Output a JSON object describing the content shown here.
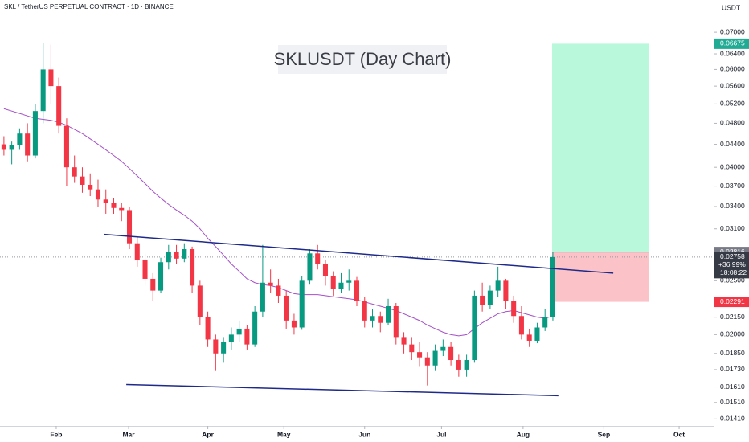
{
  "chart_data": {
    "type": "candlestick",
    "header": "SKL / TetherUS PERPETUAL CONTRACT · 1D · BINANCE",
    "title": "SKLUSDT (Day Chart)",
    "currency": "USDT",
    "log_scale": true,
    "up_color": "#089981",
    "down_color": "#f23645",
    "ylim": [
      0.0137,
      0.08
    ],
    "yticks": [
      {
        "value": 0.07,
        "label": "0.07000"
      },
      {
        "value": 0.064,
        "label": "0.06400"
      },
      {
        "value": 0.06,
        "label": "0.06000"
      },
      {
        "value": 0.056,
        "label": "0.05600"
      },
      {
        "value": 0.052,
        "label": "0.05200"
      },
      {
        "value": 0.048,
        "label": "0.04800"
      },
      {
        "value": 0.044,
        "label": "0.04400"
      },
      {
        "value": 0.04,
        "label": "0.04000"
      },
      {
        "value": 0.037,
        "label": "0.03700"
      },
      {
        "value": 0.034,
        "label": "0.03400"
      },
      {
        "value": 0.031,
        "label": "0.03100"
      },
      {
        "value": 0.025,
        "label": "0.02500"
      },
      {
        "value": 0.0215,
        "label": "0.02150"
      },
      {
        "value": 0.02,
        "label": "0.02000"
      },
      {
        "value": 0.0185,
        "label": "0.01850"
      },
      {
        "value": 0.0173,
        "label": "0.01730"
      },
      {
        "value": 0.0161,
        "label": "0.01610"
      },
      {
        "value": 0.0151,
        "label": "0.01510"
      },
      {
        "value": 0.0141,
        "label": "0.01410"
      }
    ],
    "xlim": [
      -0.5,
      90.5
    ],
    "xticks": [
      {
        "value": 6.67,
        "label": "Feb"
      },
      {
        "value": 15.9,
        "label": "Mar"
      },
      {
        "value": 26.0,
        "label": "Apr"
      },
      {
        "value": 35.7,
        "label": "May"
      },
      {
        "value": 46.0,
        "label": "Jun"
      },
      {
        "value": 55.8,
        "label": "Jul"
      },
      {
        "value": 66.2,
        "label": "Aug"
      },
      {
        "value": 76.5,
        "label": "Sep"
      },
      {
        "value": 86.1,
        "label": "Oct"
      }
    ],
    "open": [
      0.044,
      0.043,
      0.0438,
      0.046,
      0.042,
      0.0505,
      0.06,
      0.056,
      0.0475,
      0.04,
      0.0385,
      0.0372,
      0.0365,
      0.035,
      0.0345,
      0.0338,
      0.0335,
      0.0292,
      0.0272,
      0.0252,
      0.024,
      0.027,
      0.0282,
      0.0274,
      0.0285,
      0.0245,
      0.0215,
      0.0196,
      0.0185,
      0.0194,
      0.02,
      0.0205,
      0.0192,
      0.022,
      0.0248,
      0.0245,
      0.0235,
      0.0212,
      0.0206,
      0.025,
      0.028,
      0.0268,
      0.0255,
      0.0242,
      0.0248,
      0.025,
      0.023,
      0.0212,
      0.0216,
      0.021,
      0.0225,
      0.0198,
      0.0192,
      0.0186,
      0.0182,
      0.0176,
      0.0187,
      0.019,
      0.018,
      0.0173,
      0.018,
      0.0235,
      0.0226,
      0.024,
      0.025,
      0.023,
      0.0216,
      0.02,
      0.0195,
      0.0206,
      0.0215
    ],
    "high": [
      0.0455,
      0.0445,
      0.047,
      0.048,
      0.052,
      0.067,
      0.0665,
      0.058,
      0.049,
      0.042,
      0.04,
      0.039,
      0.038,
      0.0365,
      0.0352,
      0.0345,
      0.034,
      0.03,
      0.028,
      0.0258,
      0.0275,
      0.029,
      0.029,
      0.0292,
      0.0288,
      0.025,
      0.022,
      0.02,
      0.0198,
      0.0206,
      0.0212,
      0.0208,
      0.0225,
      0.029,
      0.0262,
      0.0252,
      0.024,
      0.0218,
      0.0255,
      0.0285,
      0.029,
      0.0272,
      0.026,
      0.0258,
      0.0262,
      0.0254,
      0.0234,
      0.0222,
      0.022,
      0.0232,
      0.0228,
      0.0202,
      0.0198,
      0.0194,
      0.0186,
      0.0192,
      0.0196,
      0.0194,
      0.0184,
      0.0184,
      0.024,
      0.0248,
      0.0245,
      0.0265,
      0.0252,
      0.0235,
      0.0225,
      0.0205,
      0.021,
      0.0222,
      0.02816
    ],
    "low": [
      0.042,
      0.0405,
      0.043,
      0.041,
      0.0415,
      0.048,
      0.052,
      0.046,
      0.037,
      0.0375,
      0.036,
      0.0355,
      0.034,
      0.033,
      0.033,
      0.032,
      0.0285,
      0.0265,
      0.0245,
      0.023,
      0.0238,
      0.0262,
      0.0268,
      0.027,
      0.0238,
      0.0208,
      0.019,
      0.0172,
      0.0178,
      0.0188,
      0.0194,
      0.0188,
      0.019,
      0.0215,
      0.0238,
      0.0228,
      0.0205,
      0.02,
      0.0204,
      0.0246,
      0.0262,
      0.0245,
      0.0235,
      0.0238,
      0.024,
      0.0225,
      0.0206,
      0.0206,
      0.0202,
      0.0208,
      0.0192,
      0.0185,
      0.018,
      0.0175,
      0.0162,
      0.0172,
      0.0183,
      0.0176,
      0.0168,
      0.0168,
      0.0178,
      0.022,
      0.0222,
      0.0234,
      0.0222,
      0.021,
      0.0196,
      0.019,
      0.0193,
      0.0203,
      0.0212
    ],
    "close": [
      0.043,
      0.0438,
      0.046,
      0.042,
      0.0505,
      0.06,
      0.056,
      0.0475,
      0.04,
      0.0385,
      0.0372,
      0.0365,
      0.035,
      0.0345,
      0.0338,
      0.0335,
      0.0292,
      0.0272,
      0.0252,
      0.024,
      0.027,
      0.0282,
      0.0274,
      0.0285,
      0.0245,
      0.0215,
      0.0196,
      0.0185,
      0.0194,
      0.02,
      0.0205,
      0.0192,
      0.022,
      0.0248,
      0.0245,
      0.0235,
      0.0212,
      0.0206,
      0.025,
      0.028,
      0.0268,
      0.0255,
      0.0242,
      0.0248,
      0.025,
      0.023,
      0.0212,
      0.0216,
      0.021,
      0.0225,
      0.0198,
      0.0192,
      0.0186,
      0.0182,
      0.0176,
      0.0187,
      0.019,
      0.018,
      0.0173,
      0.018,
      0.0235,
      0.0226,
      0.024,
      0.025,
      0.023,
      0.0216,
      0.02,
      0.0195,
      0.0206,
      0.0215,
      0.02758
    ],
    "ma": {
      "color": "#a64fc9",
      "values": [
        0.051,
        0.0505,
        0.05,
        0.0495,
        0.049,
        0.0488,
        0.0486,
        0.0482,
        0.0476,
        0.0468,
        0.046,
        0.045,
        0.044,
        0.043,
        0.042,
        0.041,
        0.0398,
        0.0386,
        0.0374,
        0.0362,
        0.0352,
        0.0343,
        0.0335,
        0.0328,
        0.032,
        0.031,
        0.0298,
        0.0288,
        0.0278,
        0.0268,
        0.026,
        0.0252,
        0.0248,
        0.0246,
        0.0245,
        0.0243,
        0.024,
        0.0237,
        0.0236,
        0.0236,
        0.0236,
        0.0235,
        0.0234,
        0.0233,
        0.0232,
        0.0231,
        0.0229,
        0.0227,
        0.0225,
        0.0223,
        0.0221,
        0.0218,
        0.0215,
        0.0212,
        0.0208,
        0.0205,
        0.0202,
        0.02,
        0.0199,
        0.02,
        0.0205,
        0.021,
        0.0214,
        0.0218,
        0.022,
        0.0221,
        0.0219,
        0.0217,
        0.0215,
        0.0214,
        0.0216
      ]
    },
    "trend_lines": [
      {
        "color": "#1e2a8a",
        "x": [
          12.8,
          77.7
        ],
        "y": [
          0.0303,
          0.0258
        ]
      },
      {
        "color": "#1e2a8a",
        "x": [
          15.6,
          70.7
        ],
        "y": [
          0.01626,
          0.01553
        ]
      }
    ],
    "position": {
      "x_range": [
        69.9,
        82.3
      ],
      "target": 0.06675,
      "entry": 0.02816,
      "stop": 0.02291
    },
    "change": "+36.99%",
    "countdown": "18:08:22"
  }
}
